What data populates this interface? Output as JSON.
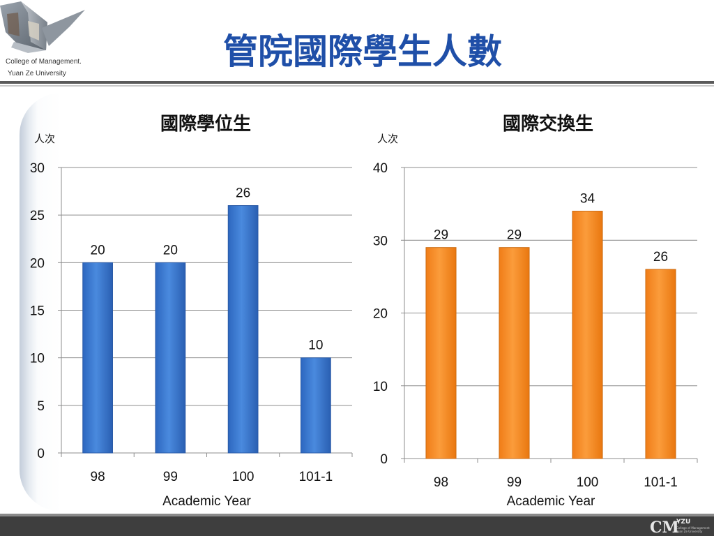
{
  "slide": {
    "title": "管院國際學生人數",
    "logo_line1": "College  of Management.",
    "logo_line2": "Yuan Ze University",
    "footer_logo_mark": "CM",
    "footer_logo_brand": "YZU",
    "footer_logo_line1": "College of Management",
    "footer_logo_line2": "Yuan Ze University"
  },
  "colors": {
    "title": "#1f4fa8",
    "degree_bar": "#3b7ad2",
    "exchange_bar": "#f8902b",
    "footer": "#3e3e3e"
  },
  "chart_data": [
    {
      "type": "bar",
      "title": "國際學位生",
      "ylabel": "人次",
      "xlabel": "Academic Year",
      "categories": [
        "98",
        "99",
        "100",
        "101-1"
      ],
      "values": [
        20,
        20,
        26,
        10
      ],
      "ylim": [
        0,
        30
      ],
      "yticks": [
        0,
        5,
        10,
        15,
        20,
        25,
        30
      ],
      "grid": true,
      "legend": "none"
    },
    {
      "type": "bar",
      "title": "國際交換生",
      "ylabel": "人次",
      "xlabel": "Academic Year",
      "categories": [
        "98",
        "99",
        "100",
        "101-1"
      ],
      "values": [
        29,
        29,
        34,
        26
      ],
      "ylim": [
        0,
        40
      ],
      "yticks": [
        0,
        10,
        20,
        30,
        40
      ],
      "grid": true,
      "legend": "none"
    }
  ]
}
